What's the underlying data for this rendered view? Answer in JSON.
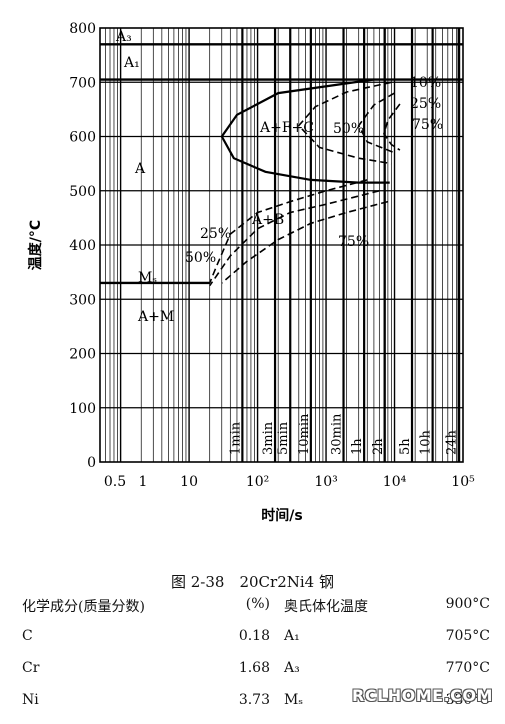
{
  "chart_data": {
    "type": "line",
    "title": "",
    "xlabel": "时间/s",
    "ylabel": "温度/°C",
    "xscale": "log",
    "xlim": [
      0.5,
      100000
    ],
    "ylim": [
      0,
      800
    ],
    "x_ticks": [
      "0.5",
      "1",
      "10",
      "10²",
      "10³",
      "10⁴",
      "10⁵"
    ],
    "y_ticks": [
      "0",
      "100",
      "200",
      "300",
      "400",
      "500",
      "600",
      "700",
      "800"
    ],
    "time_marks": [
      {
        "label": "1min",
        "x": 60
      },
      {
        "label": "3min",
        "x": 180
      },
      {
        "label": "5min",
        "x": 300
      },
      {
        "label": "10min",
        "x": 600
      },
      {
        "label": "30min",
        "x": 1800
      },
      {
        "label": "1h",
        "x": 3600
      },
      {
        "label": "2h",
        "x": 7200
      },
      {
        "label": "5h",
        "x": 18000
      },
      {
        "label": "10h",
        "x": 36000
      },
      {
        "label": "24h",
        "x": 86400
      }
    ],
    "temperature_lines": [
      {
        "label": "A3",
        "y": 770
      },
      {
        "label": "A1",
        "y": 705
      },
      {
        "label": "Ms",
        "y": 330
      }
    ],
    "series": [
      {
        "name": "",
        "style": "solid",
        "points": [
          [
            5000,
            705
          ],
          [
            200,
            680
          ],
          [
            50,
            640
          ],
          [
            30,
            600
          ],
          [
            45,
            560
          ],
          [
            130,
            535
          ],
          [
            600,
            520
          ],
          [
            3000,
            515
          ],
          [
            8500,
            515
          ]
        ]
      },
      {
        "name": "",
        "style": "dashed",
        "points": [
          [
            9000,
            700
          ],
          [
            2000,
            682
          ],
          [
            700,
            655
          ],
          [
            400,
            620
          ],
          [
            800,
            580
          ],
          [
            3000,
            560
          ],
          [
            9000,
            550
          ]
        ]
      },
      {
        "name": "",
        "style": "dashed",
        "points": [
          [
            10000,
            680
          ],
          [
            5000,
            658
          ],
          [
            3000,
            620
          ],
          [
            4000,
            590
          ],
          [
            10000,
            570
          ]
        ]
      },
      {
        "name": "",
        "style": "dashed",
        "points": [
          [
            12000,
            660
          ],
          [
            8000,
            630
          ],
          [
            7000,
            605
          ],
          [
            9000,
            585
          ],
          [
            12000,
            575
          ]
        ]
      },
      {
        "name": "",
        "style": "dashed",
        "points": [
          [
            4000,
            520
          ],
          [
            1000,
            500
          ],
          [
            300,
            480
          ],
          [
            100,
            460
          ],
          [
            40,
            420
          ],
          [
            25,
            360
          ],
          [
            20,
            330
          ]
        ]
      },
      {
        "name": "",
        "style": "dashed",
        "points": [
          [
            6000,
            500
          ],
          [
            1000,
            475
          ],
          [
            300,
            460
          ],
          [
            100,
            430
          ],
          [
            40,
            380
          ],
          [
            20,
            325
          ]
        ]
      },
      {
        "name": "",
        "style": "dashed",
        "points": [
          [
            8000,
            480
          ],
          [
            2000,
            460
          ],
          [
            600,
            440
          ],
          [
            200,
            410
          ],
          [
            70,
            370
          ],
          [
            30,
            330
          ]
        ]
      }
    ],
    "annotations": [
      "A3",
      "A1",
      "A",
      "A+F+C",
      "A+B",
      "A+M",
      "Ms",
      "10%",
      "25%",
      "50%",
      "75%"
    ]
  },
  "labels": {
    "a3": "A₃",
    "a1": "A₁",
    "a": "A",
    "afc": "A+F+C",
    "ab": "A+B",
    "am": "A+M",
    "ms": "Mₛ",
    "p10": "10%",
    "p25a": "25%",
    "p50a": "50%",
    "p75a": "75%",
    "p25b": "25%",
    "p50b": "50%",
    "p75b": "75%"
  },
  "caption": "图 2-38　20Cr2Ni4 钢",
  "composition": {
    "header": {
      "name": "化学成分(质量分数)",
      "unit": "(%)",
      "austen": "奥氏体化温度",
      "austen_value": "900°C"
    },
    "rows": [
      {
        "element": "C",
        "value": "0.18",
        "point": "A₁",
        "temp": "705°C"
      },
      {
        "element": "Cr",
        "value": "1.68",
        "point": "A₃",
        "temp": "770°C"
      },
      {
        "element": "Ni",
        "value": "3.73",
        "point": "Mₛ",
        "temp": "330°C"
      }
    ]
  },
  "watermark": "RCLHOME.COM"
}
